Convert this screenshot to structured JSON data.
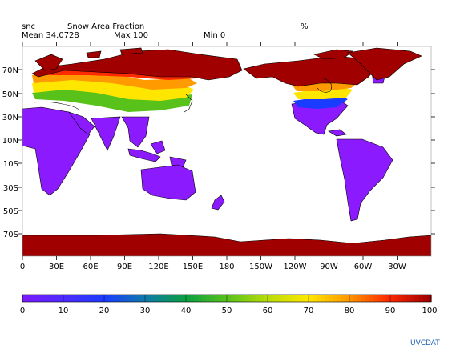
{
  "header": {
    "variable": "snc",
    "long_name": "Snow Area Fraction",
    "units": "%",
    "mean": "Mean 34.0728",
    "max": "Max 100",
    "min": "Min 0"
  },
  "map": {
    "projection": "cylindrical equidistant, Pacific-centered",
    "lon_range": [
      0,
      360
    ],
    "lat_range": [
      -90,
      90
    ],
    "lon_ticks": [
      "0",
      "30E",
      "60E",
      "90E",
      "120E",
      "150E",
      "180",
      "150W",
      "120W",
      "90W",
      "60W",
      "30W"
    ],
    "lat_ticks": [
      "70N",
      "50N",
      "30N",
      "10N",
      "10S",
      "30S",
      "50S",
      "70S"
    ],
    "colors": {
      "zero": "#8c1aff",
      "full": "#a00000",
      "ocean": "#ffffff",
      "coast": "#000000"
    }
  },
  "colorbar": {
    "min": 0,
    "max": 100,
    "labels": [
      "0",
      "10",
      "20",
      "30",
      "40",
      "50",
      "60",
      "70",
      "80",
      "90",
      "100"
    ],
    "colors": [
      "#7a1aff",
      "#4b2bff",
      "#1a3cff",
      "#0f7aa8",
      "#0aa040",
      "#58c21a",
      "#b8dc0a",
      "#ffe600",
      "#ff9a00",
      "#ff2a00",
      "#a00000"
    ]
  },
  "footer": {
    "brand": "UVCDAT"
  }
}
